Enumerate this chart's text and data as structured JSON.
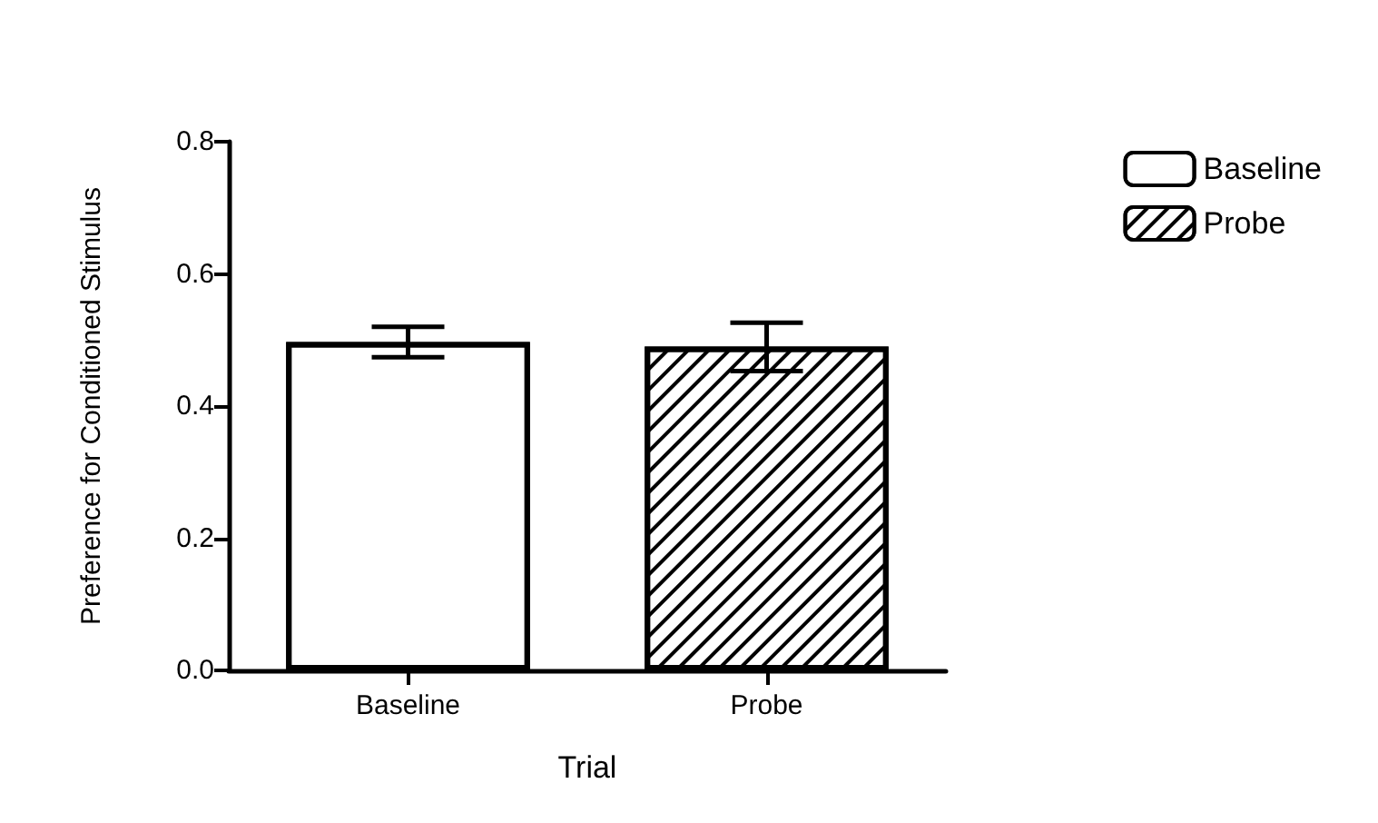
{
  "chart_data": {
    "type": "bar",
    "xlabel": "Trial",
    "ylabel": "Preference for Conditioned Stimulus",
    "categories": [
      "Baseline",
      "Probe"
    ],
    "series": [
      {
        "name": "Baseline",
        "color": "#ffffff",
        "values": [
          0.497,
          null
        ],
        "errors": [
          [
            0.474,
            0.52
          ],
          null
        ]
      },
      {
        "name": "Probe",
        "color": "#ffffff",
        "values": [
          null,
          0.49
        ],
        "errors": [
          null,
          [
            0.453,
            0.526
          ]
        ]
      }
    ],
    "ylim": [
      0,
      0.8
    ],
    "yticks": [
      {
        "value": 0,
        "label": "0.0"
      },
      {
        "value": 0.2,
        "label": "0.2"
      },
      {
        "value": 0.4,
        "label": "0.4"
      },
      {
        "value": 0.6,
        "label": "0.6"
      },
      {
        "value": 0.8,
        "label": "0.8"
      }
    ],
    "grid": false,
    "legend": "top right"
  }
}
